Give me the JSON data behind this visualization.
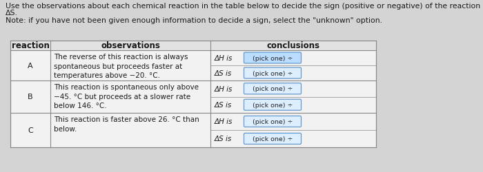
{
  "title_line1": "Use the observations about each chemical reaction in the table below to decide the sign (positive or negative) of the reaction enthalpy ΔH and reaction entropy",
  "title_line2": "ΔS.",
  "note": "Note: if you have not been given enough information to decide a sign, select the \"unknown\" option.",
  "col_headers": [
    "reaction",
    "observations",
    "conclusions"
  ],
  "rows": [
    {
      "label": "A",
      "observation": "The reverse of this reaction is always\nspontaneous but proceeds faster at\ntemperatures above −20. °C.",
      "dH_label": "ΔH is",
      "dS_label": "ΔS is"
    },
    {
      "label": "B",
      "observation": "This reaction is spontaneous only above\n−45. °C but proceeds at a slower rate\nbelow 146. °C.",
      "dH_label": "ΔH is",
      "dS_label": "ΔS is"
    },
    {
      "label": "C",
      "observation": "This reaction is faster above 26. °C than\nbelow.",
      "dH_label": "ΔH is",
      "dS_label": "ΔS is"
    }
  ],
  "pick_one_text": "(pick one) ÷",
  "bg_color": "#d4d4d4",
  "table_bg": "#f2f2f2",
  "header_bg": "#e2e2e2",
  "border_color": "#888888",
  "text_color": "#1a1a1a",
  "title_fontsize": 7.8,
  "header_fontsize": 8.5,
  "cell_fontsize": 7.5,
  "pick_box_color": "#ddeeff",
  "pick_box_border": "#6699cc",
  "pick_box_highlight": "#bbddff"
}
